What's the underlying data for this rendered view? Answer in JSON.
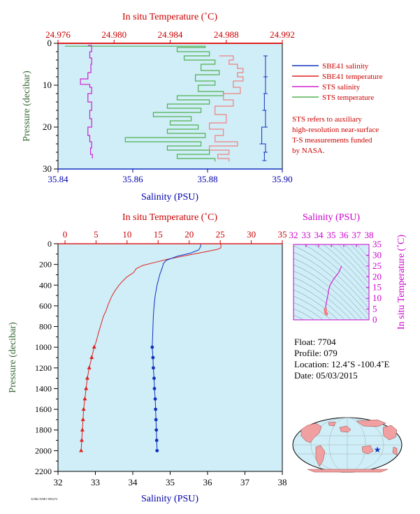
{
  "colors": {
    "plot_bg": "#cfeef7",
    "salinity": "#1030c0",
    "temperature": "#e02020",
    "sts_salinity": "#d020d0",
    "sts_temperature": "#50b050",
    "sbe_temp_zoom": "#f08080",
    "pressure_label": "#336633",
    "map_ocean": "#cfeef7",
    "map_land": "#f0a0a0"
  },
  "chart_data": [
    {
      "id": "near-surface",
      "type": "line",
      "title": "",
      "top_axis_label": "In situ Temperature (˚C)",
      "top_ticks": [
        "24.976",
        "24.980",
        "24.984",
        "24.988",
        "24.992"
      ],
      "top_range": [
        24.976,
        24.992
      ],
      "xlabel": "Salinity (PSU)",
      "x_ticks": [
        "35.84",
        "35.86",
        "35.88",
        "35.90"
      ],
      "x_range": [
        35.84,
        35.9
      ],
      "ylabel": "Pressure (decibar)",
      "y_ticks": [
        "0",
        "10",
        "20",
        "30"
      ],
      "y_range": [
        0,
        30
      ],
      "legend": [
        {
          "name": "SBE41 salinity",
          "color": "#1030c0"
        },
        {
          "name": "SBE41 temperature",
          "color": "#e02020"
        },
        {
          "name": "STS salinity",
          "color": "#d020d0"
        },
        {
          "name": "STS temperature",
          "color": "#50b050"
        }
      ],
      "note": [
        "STS refers to auxiliary",
        "high-resolution near-surface",
        "T-S measurements funded",
        "by NASA."
      ],
      "series": [
        {
          "name": "STS salinity",
          "axis": "salinity",
          "points": [
            [
              35.848,
              0.5
            ],
            [
              35.849,
              2
            ],
            [
              35.8485,
              3.5
            ],
            [
              35.849,
              5
            ],
            [
              35.8488,
              7
            ],
            [
              35.848,
              8.5
            ],
            [
              35.846,
              9.8
            ],
            [
              35.8485,
              10.5
            ],
            [
              35.849,
              12
            ],
            [
              35.848,
              14
            ],
            [
              35.849,
              16
            ],
            [
              35.8485,
              18
            ],
            [
              35.849,
              20
            ],
            [
              35.848,
              22
            ],
            [
              35.8485,
              23.5
            ],
            [
              35.849,
              25
            ],
            [
              35.8487,
              26.5
            ],
            [
              35.8492,
              27.5
            ]
          ]
        },
        {
          "name": "STS temperature",
          "axis": "temperature",
          "points": [
            [
              24.9765,
              0.7
            ],
            [
              24.9865,
              1
            ],
            [
              24.9845,
              2
            ],
            [
              24.9868,
              3
            ],
            [
              24.985,
              4
            ],
            [
              24.9872,
              5
            ],
            [
              24.9862,
              6.5
            ],
            [
              24.9875,
              7.5
            ],
            [
              24.9858,
              9
            ],
            [
              24.9872,
              10
            ],
            [
              24.986,
              11.5
            ],
            [
              24.9878,
              12.5
            ],
            [
              24.9845,
              13.5
            ],
            [
              24.9868,
              14.5
            ],
            [
              24.9838,
              15.5
            ],
            [
              24.9862,
              16.5
            ],
            [
              24.9828,
              17.5
            ],
            [
              24.9855,
              18.5
            ],
            [
              24.984,
              19.5
            ],
            [
              24.986,
              20.5
            ],
            [
              24.9838,
              21.5
            ],
            [
              24.9865,
              22.5
            ],
            [
              24.9808,
              23.5
            ],
            [
              24.9862,
              24.5
            ],
            [
              24.9838,
              25.5
            ],
            [
              24.9868,
              26.5
            ],
            [
              24.9845,
              27.5
            ],
            [
              24.9872,
              28.2
            ]
          ]
        },
        {
          "name": "SBE41 temperature",
          "axis": "temperature",
          "points": [
            [
              24.9875,
              3
            ],
            [
              24.9885,
              4
            ],
            [
              24.9882,
              5
            ],
            [
              24.9888,
              6
            ],
            [
              24.9892,
              7
            ],
            [
              24.9888,
              8
            ],
            [
              24.9892,
              9
            ],
            [
              24.9885,
              10.5
            ],
            [
              24.989,
              12
            ],
            [
              24.9878,
              13.5
            ],
            [
              24.9885,
              15
            ],
            [
              24.9872,
              17
            ],
            [
              24.988,
              19
            ],
            [
              24.9868,
              20.5
            ],
            [
              24.9878,
              22
            ],
            [
              24.9872,
              23.5
            ],
            [
              24.9888,
              24.5
            ],
            [
              24.9868,
              25.5
            ],
            [
              24.9882,
              26.5
            ],
            [
              24.9874,
              27.5
            ],
            [
              24.9882,
              28.2
            ]
          ]
        },
        {
          "name": "SBE41 salinity",
          "axis": "salinity",
          "points": [
            [
              35.8955,
              3
            ],
            [
              35.8955,
              8
            ],
            [
              35.8955,
              12
            ],
            [
              35.8952,
              16
            ],
            [
              35.8955,
              20
            ],
            [
              35.8945,
              24
            ],
            [
              35.8955,
              26
            ],
            [
              35.8952,
              28
            ]
          ]
        }
      ]
    },
    {
      "id": "full-profile",
      "type": "line",
      "title": "",
      "top_axis_label": "In situ Temperature (˚C)",
      "top_ticks": [
        "0",
        "5",
        "10",
        "15",
        "20",
        "25",
        "30",
        "35"
      ],
      "top_range": [
        0,
        35
      ],
      "xlabel": "Salinity (PSU)",
      "x_ticks": [
        "32",
        "33",
        "34",
        "35",
        "36",
        "37",
        "38"
      ],
      "x_range": [
        32,
        38
      ],
      "ylabel": "Pressure (decibar)",
      "y_ticks": [
        "0",
        "200",
        "400",
        "600",
        "800",
        "1000",
        "1200",
        "1400",
        "1600",
        "1800",
        "2000",
        "2200"
      ],
      "y_range": [
        0,
        2200
      ],
      "series": [
        {
          "name": "Temperature",
          "axis": "temperature",
          "color": "#e02020",
          "points": [
            [
              25.1,
              0
            ],
            [
              25.1,
              40
            ],
            [
              24.5,
              55
            ],
            [
              22,
              85
            ],
            [
              19,
              120
            ],
            [
              16.5,
              150
            ],
            [
              14.5,
              180
            ],
            [
              12.5,
              210
            ],
            [
              11.5,
              240
            ],
            [
              11,
              280
            ],
            [
              10,
              320
            ],
            [
              9.3,
              360
            ],
            [
              8.7,
              400
            ],
            [
              8.1,
              450
            ],
            [
              7.6,
              500
            ],
            [
              7.0,
              580
            ],
            [
              6.6,
              650
            ],
            [
              6.2,
              700
            ],
            [
              5.8,
              780
            ],
            [
              5.4,
              860
            ],
            [
              5.0,
              950
            ],
            [
              4.7,
              1000
            ],
            [
              4.3,
              1100
            ],
            [
              3.9,
              1200
            ],
            [
              3.6,
              1300
            ],
            [
              3.4,
              1400
            ],
            [
              3.2,
              1500
            ],
            [
              3.0,
              1600
            ],
            [
              2.9,
              1700
            ],
            [
              2.8,
              1800
            ],
            [
              2.7,
              1900
            ],
            [
              2.6,
              2000
            ]
          ],
          "markers_from": 1000
        },
        {
          "name": "Salinity",
          "axis": "salinity",
          "color": "#1030c0",
          "points": [
            [
              35.82,
              0
            ],
            [
              35.81,
              30
            ],
            [
              35.76,
              60
            ],
            [
              35.55,
              90
            ],
            [
              35.2,
              120
            ],
            [
              34.9,
              160
            ],
            [
              34.82,
              190
            ],
            [
              34.8,
              220
            ],
            [
              34.72,
              300
            ],
            [
              34.65,
              400
            ],
            [
              34.6,
              500
            ],
            [
              34.57,
              600
            ],
            [
              34.55,
              700
            ],
            [
              34.54,
              800
            ],
            [
              34.53,
              900
            ],
            [
              34.52,
              1000
            ],
            [
              34.54,
              1100
            ],
            [
              34.55,
              1200
            ],
            [
              34.57,
              1300
            ],
            [
              34.58,
              1400
            ],
            [
              34.6,
              1500
            ],
            [
              34.61,
              1600
            ],
            [
              34.62,
              1700
            ],
            [
              34.63,
              1800
            ],
            [
              34.64,
              1900
            ],
            [
              34.65,
              2000
            ]
          ],
          "markers_from": 1000
        }
      ]
    },
    {
      "id": "ts-diagram",
      "type": "scatter",
      "title": "",
      "top_axis_label": "Salinity (PSU)",
      "x_ticks": [
        "32",
        "33",
        "34",
        "35",
        "36",
        "37",
        "38"
      ],
      "x_range": [
        32,
        38
      ],
      "right_axis_label": "In situ Temperature (˚C)",
      "y_ticks": [
        "0",
        "5",
        "10",
        "15",
        "20",
        "25",
        "30",
        "35"
      ],
      "y_range": [
        0,
        35
      ],
      "series": [
        {
          "name": "T-S",
          "points": [
            [
              35.82,
              25
            ],
            [
              35.6,
              22
            ],
            [
              35.2,
              19
            ],
            [
              34.9,
              16
            ],
            [
              34.8,
              14
            ],
            [
              34.72,
              11
            ],
            [
              34.65,
              9
            ],
            [
              34.58,
              7
            ],
            [
              34.54,
              5
            ],
            [
              34.52,
              4.5
            ],
            [
              34.55,
              3.5
            ],
            [
              34.6,
              3
            ],
            [
              34.63,
              2.7
            ]
          ]
        }
      ]
    }
  ],
  "float_info": {
    "float": "Float: 7704",
    "profile": "Profile: 079",
    "location": "Location: 12.4˚S -100.4˚E",
    "date": "Date: 05/03/2015"
  }
}
